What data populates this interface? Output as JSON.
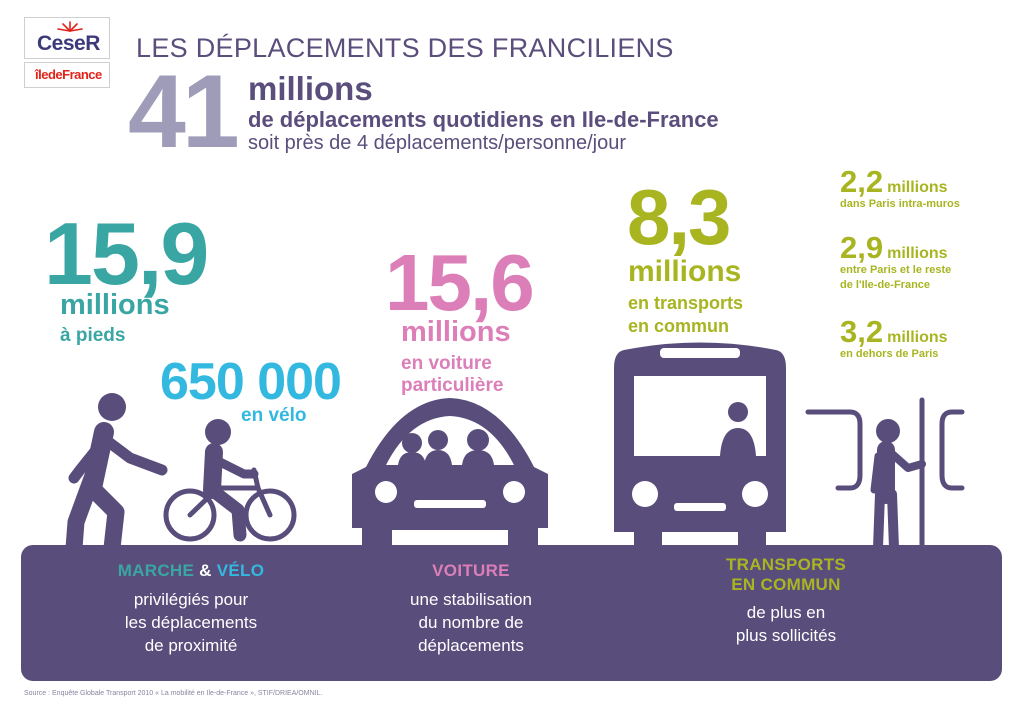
{
  "logos": {
    "ceser": "CeseR",
    "idf": "îledeFrance"
  },
  "title": "LES DÉPLACEMENTS DES FRANCILIENS",
  "total": {
    "number": "41",
    "unit": "millions",
    "description": "de déplacements quotidiens en Ile-de-France",
    "subline": "soit près de 4 déplacements/personne/jour"
  },
  "walking": {
    "number": "15,9",
    "unit": "millions",
    "description": "à pieds"
  },
  "cycling": {
    "number": "650 000",
    "description": "en vélo"
  },
  "car": {
    "number": "15,6",
    "unit": "millions",
    "description_line1": "en voiture",
    "description_line2": "particulière"
  },
  "transit": {
    "number": "8,3",
    "unit": "millions",
    "description_line1": "en transports",
    "description_line2": "en commun",
    "breakdown": [
      {
        "number": "2,2",
        "unit": "millions",
        "description_line1": "dans Paris intra-muros",
        "description_line2": ""
      },
      {
        "number": "2,9",
        "unit": "millions",
        "description_line1": "entre Paris et le reste",
        "description_line2": "de l'Ile-de-France"
      },
      {
        "number": "3,2",
        "unit": "millions",
        "description_line1": "en dehors de Paris",
        "description_line2": ""
      }
    ]
  },
  "banner": {
    "col1": {
      "head_a": "MARCHE",
      "head_amp": "&",
      "head_b": "VÉLO",
      "line1": "privilégiés pour",
      "line2": "les déplacements",
      "line3": "de proximité"
    },
    "col2": {
      "head": "VOITURE",
      "line1": "une stabilisation",
      "line2": "du nombre de",
      "line3": "déplacements"
    },
    "col3": {
      "head_line1": "TRANSPORTS",
      "head_line2": "EN COMMUN",
      "line1": "de plus en",
      "line2": "plus sollicités"
    }
  },
  "source": "Source : Enquête Globale Transport 2010 « La mobilité en Ile-de-France », STIF/DRIEA/OMNIL.",
  "colors": {
    "purple": "#594e7b",
    "grey_purple": "#9f9cb9",
    "teal": "#3aa6a4",
    "sky": "#33b8e0",
    "pink": "#dc7fb8",
    "olive": "#a8b521"
  },
  "icons": [
    "pedestrian-icon",
    "cyclist-icon",
    "car-icon",
    "bus-icon",
    "standing-passenger-icon"
  ]
}
